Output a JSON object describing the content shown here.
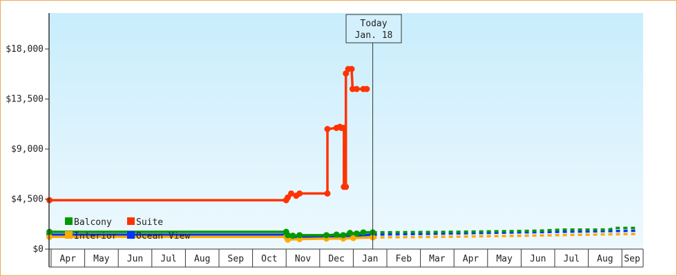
{
  "chart_data": {
    "type": "line",
    "title": "",
    "xlabel": "",
    "ylabel": "",
    "ylim": [
      0,
      21500
    ],
    "y_ticks": [
      {
        "v": 0,
        "label": "$0"
      },
      {
        "v": 4500,
        "label": "$4,500"
      },
      {
        "v": 9000,
        "label": "$9,000"
      },
      {
        "v": 13500,
        "label": "$13,500"
      },
      {
        "v": 18000,
        "label": "$18,000"
      }
    ],
    "x_unit": "months since Apr 1",
    "x_ticks": [
      "Apr",
      "May",
      "Jun",
      "Jul",
      "Aug",
      "Sep",
      "Oct",
      "Nov",
      "Dec",
      "Jan",
      "Feb",
      "Mar",
      "Apr",
      "May",
      "Jun",
      "Jul",
      "Aug",
      "Sep"
    ],
    "today": {
      "x": 9.58,
      "line1": "Today",
      "line2": "Jan. 18"
    },
    "legend": [
      {
        "name": "Balcony",
        "color": "#009900"
      },
      {
        "name": "Suite",
        "color": "#ff3300"
      },
      {
        "name": "Interior",
        "color": "#ffaa00"
      },
      {
        "name": "Ocean View",
        "color": "#0033ff"
      }
    ],
    "series": [
      {
        "name": "Ocean View",
        "color": "#0033ff",
        "points": [
          [
            -0.05,
            1300
          ],
          [
            7.0,
            1300
          ],
          [
            7.05,
            1050
          ],
          [
            7.4,
            1050
          ],
          [
            8.2,
            1150
          ],
          [
            9.0,
            1200
          ],
          [
            9.58,
            1300
          ]
        ],
        "forecast": [
          [
            9.58,
            1300
          ],
          [
            14,
            1500
          ],
          [
            17.4,
            1650
          ]
        ]
      },
      {
        "name": "Interior",
        "color": "#ffaa00",
        "points": [
          [
            -0.05,
            1100
          ],
          [
            7.0,
            1100
          ],
          [
            7.05,
            850
          ],
          [
            7.4,
            900
          ],
          [
            8.2,
            950
          ],
          [
            8.7,
            950
          ],
          [
            9.0,
            1000
          ],
          [
            9.58,
            1050
          ]
        ],
        "forecast": [
          [
            9.58,
            1050
          ],
          [
            11.5,
            1100
          ],
          [
            14,
            1200
          ],
          [
            17,
            1350
          ],
          [
            17.4,
            1350
          ]
        ]
      },
      {
        "name": "Balcony",
        "color": "#009900",
        "points": [
          [
            -0.05,
            1550
          ],
          [
            7.0,
            1550
          ],
          [
            7.05,
            1250
          ],
          [
            7.2,
            1200
          ],
          [
            7.4,
            1250
          ],
          [
            8.2,
            1250
          ],
          [
            8.5,
            1300
          ],
          [
            8.7,
            1250
          ],
          [
            8.9,
            1450
          ],
          [
            9.1,
            1400
          ],
          [
            9.3,
            1500
          ],
          [
            9.58,
            1500
          ]
        ],
        "forecast": [
          [
            9.58,
            1500
          ],
          [
            12,
            1550
          ],
          [
            14.5,
            1650
          ],
          [
            15.2,
            1750
          ],
          [
            16.6,
            1750
          ],
          [
            16.8,
            1900
          ],
          [
            17.4,
            1900
          ]
        ]
      },
      {
        "name": "Suite",
        "color": "#ff3300",
        "points": [
          [
            -0.05,
            4400
          ],
          [
            7.0,
            4400
          ],
          [
            7.05,
            4650
          ],
          [
            7.15,
            5000
          ],
          [
            7.3,
            4800
          ],
          [
            7.4,
            5000
          ],
          [
            8.23,
            5000
          ],
          [
            8.23,
            10800
          ],
          [
            8.5,
            10900
          ],
          [
            8.6,
            11000
          ],
          [
            8.65,
            10900
          ],
          [
            8.72,
            10900
          ],
          [
            8.72,
            5600
          ],
          [
            8.78,
            5600
          ],
          [
            8.78,
            15800
          ],
          [
            8.85,
            16200
          ],
          [
            8.95,
            16200
          ],
          [
            8.98,
            14400
          ],
          [
            9.1,
            14400
          ],
          [
            9.3,
            14400
          ],
          [
            9.4,
            14400
          ]
        ],
        "forecast": []
      }
    ]
  }
}
